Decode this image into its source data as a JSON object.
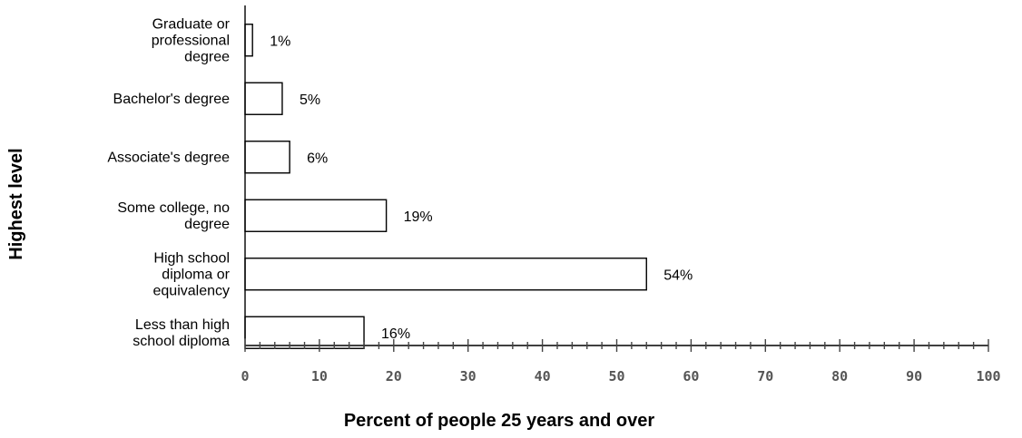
{
  "chart_data": {
    "type": "bar",
    "orientation": "horizontal",
    "categories": [
      [
        "Graduate or",
        "professional",
        "degree"
      ],
      [
        "Bachelor's degree"
      ],
      [
        "Associate's degree"
      ],
      [
        "Some college, no",
        "degree"
      ],
      [
        "High school",
        "diploma or",
        "equivalency"
      ],
      [
        "Less than high",
        "school diploma"
      ]
    ],
    "values": [
      1,
      5,
      6,
      19,
      54,
      16
    ],
    "value_labels": [
      "1%",
      "5%",
      "6%",
      "19%",
      "54%",
      "16%"
    ],
    "xlabel": "Percent of people 25 years and over",
    "ylabel": "Highest level",
    "xlim": [
      0,
      100
    ],
    "xticks": [
      0,
      10,
      20,
      30,
      40,
      50,
      60,
      70,
      80,
      90,
      100
    ],
    "xtick_labels": [
      "0",
      "10",
      "20",
      "30",
      "40",
      "50",
      "60",
      "70",
      "80",
      "90",
      "100"
    ],
    "grid": false,
    "legend": false
  }
}
